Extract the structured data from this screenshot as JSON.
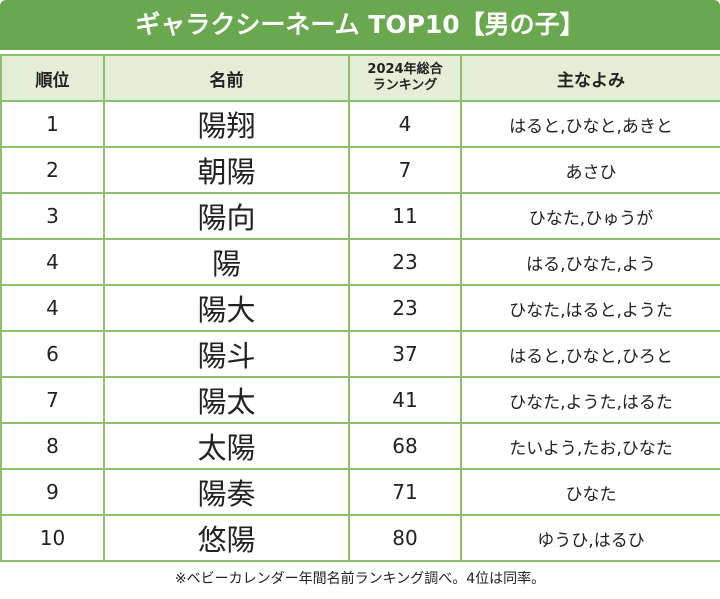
{
  "title": "ギャラクシーネーム TOP10【男の子】",
  "table": {
    "header": [
      "順位",
      "名前",
      [
        "2024年総合",
        "ランキング"
      ],
      "主なよみ"
    ],
    "rows": [
      [
        "1",
        "陽翔",
        "4",
        "はると,ひなと,あきと"
      ],
      [
        "2",
        "朝陽",
        "7",
        "あさひ"
      ],
      [
        "3",
        "陽向",
        "11",
        "ひなた,ひゅうが"
      ],
      [
        "4",
        "陽",
        "23",
        "はる,ひなた,よう"
      ],
      [
        "4",
        "陽大",
        "23",
        "ひなた,はると,ようた"
      ],
      [
        "6",
        "陽斗",
        "37",
        "はると,ひなと,ひろと"
      ],
      [
        "7",
        "陽太",
        "41",
        "ひなた,ようた,はるた"
      ],
      [
        "8",
        "太陽",
        "68",
        "たいよう,たお,ひなた"
      ],
      [
        "9",
        "陽奏",
        "71",
        "ひなた"
      ],
      [
        "10",
        "悠陽",
        "80",
        "ゆうひ,はるひ"
      ]
    ]
  },
  "footnote": "※ベビーカレンダー年間名前ランキング調べ。4位は同率。"
}
